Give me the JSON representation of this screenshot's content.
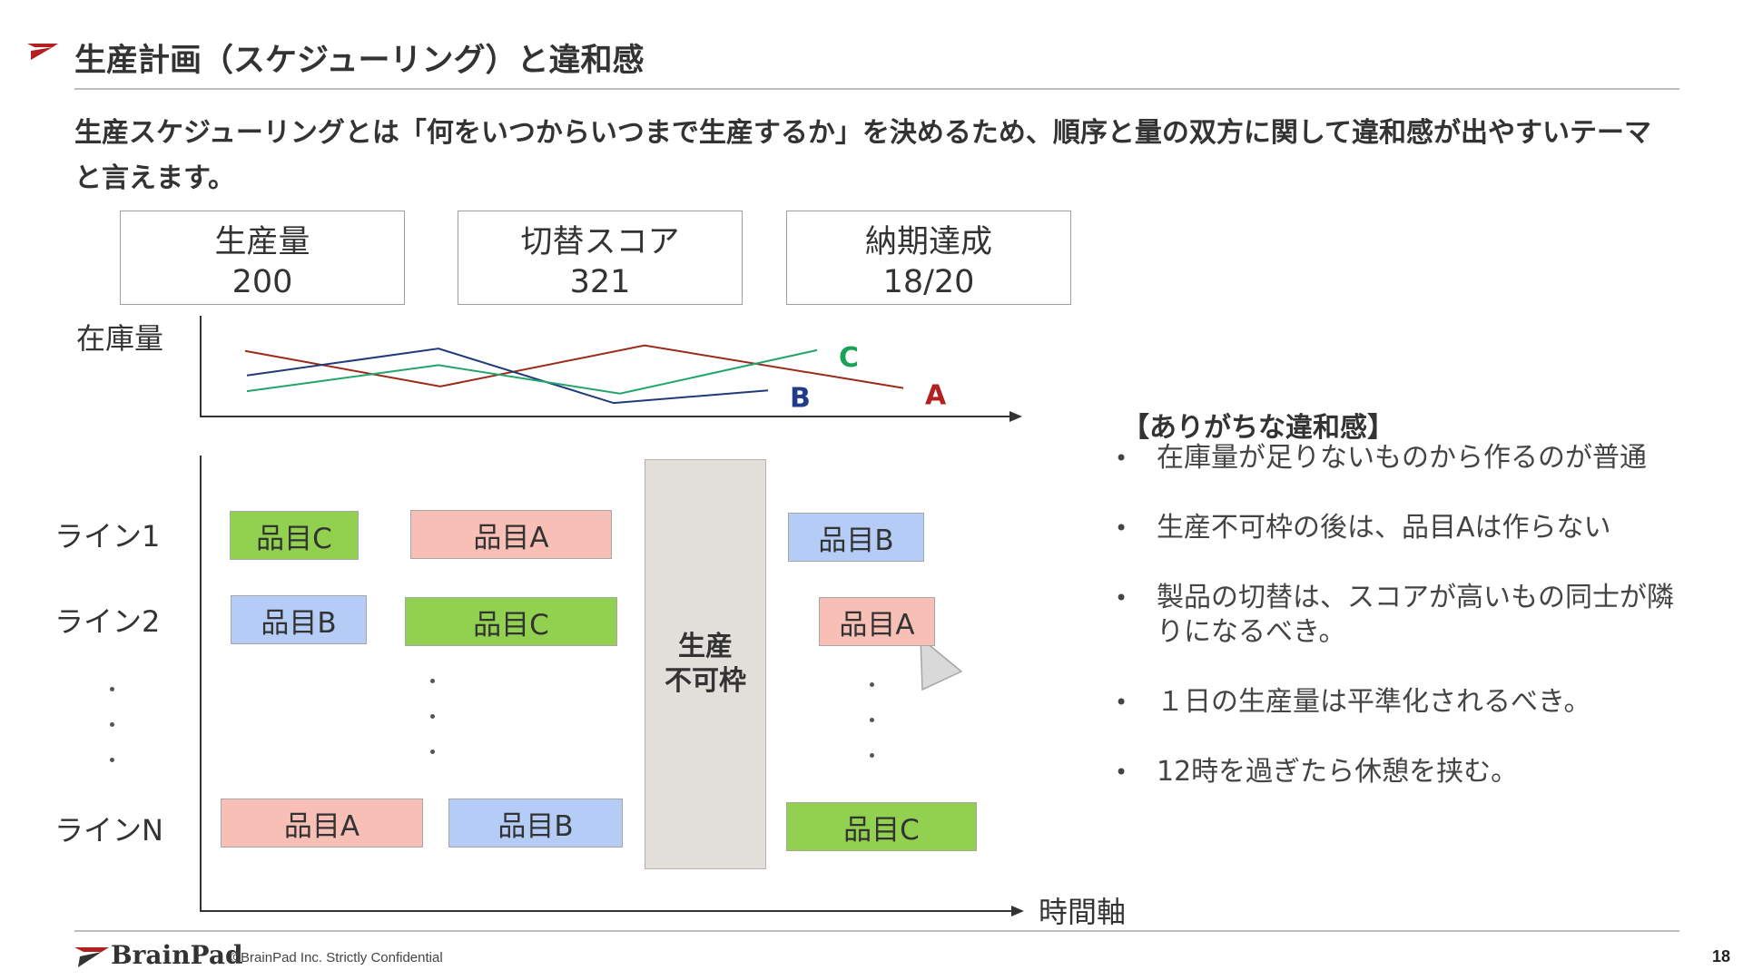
{
  "slide": {
    "title": "生産計画（スケジューリング）と違和感",
    "lead": "生産スケジューリングとは「何をいつからいつまで生産するか」を決めるため、順序と量の双方に関して違和感が出やすいテーマと言えます。",
    "page_number": "18"
  },
  "kpis": [
    {
      "label": "生産量",
      "value": "200"
    },
    {
      "label": "切替スコア",
      "value": "321"
    },
    {
      "label": "納期達成",
      "value": "18/20"
    }
  ],
  "inventory_chart": {
    "ylabel": "在庫量",
    "series": [
      {
        "name": "A",
        "color": "#9b2a1a",
        "label_color": "#b32020",
        "values": [
          0.75,
          0.3,
          0.82,
          0.28
        ]
      },
      {
        "name": "B",
        "color": "#1f3b7a",
        "label_color": "#1f3b8a",
        "values": [
          0.44,
          0.78,
          0.09,
          0.25
        ]
      },
      {
        "name": "C",
        "color": "#21a66a",
        "label_color": "#1aa357",
        "values": [
          0.24,
          0.57,
          0.21,
          0.76
        ]
      }
    ]
  },
  "schedule": {
    "xlabel": "時間軸",
    "lines": [
      "ライン1",
      "ライン2",
      "ラインN"
    ],
    "items": {
      "l1_1": "品目C",
      "l1_2": "品目A",
      "l1_3": "品目B",
      "l2_1": "品目B",
      "l2_2": "品目C",
      "l2_3": "品目A",
      "ln_1": "品目A",
      "ln_2": "品目B",
      "ln_3": "品目C"
    },
    "block_line1": "生産",
    "block_line2": "不可枠"
  },
  "notes": {
    "title": "【ありがちな違和感】",
    "items": [
      "在庫量が足りないものから作るのが普通",
      "生産不可枠の後は、品目Aは作らない",
      "製品の切替は、スコアが高いもの同士が隣りになるべき。",
      "１日の生産量は平準化されるべき。",
      "12時を過ぎたら休憩を挟む。"
    ]
  },
  "footer": {
    "brand": "BrainPad",
    "copyright": "©BrainPad Inc.  Strictly Confidential"
  },
  "colors": {
    "item_a": "#f8bfb7",
    "item_b": "#b5cdf6",
    "item_c": "#92d050",
    "accent_red": "#b32020"
  }
}
